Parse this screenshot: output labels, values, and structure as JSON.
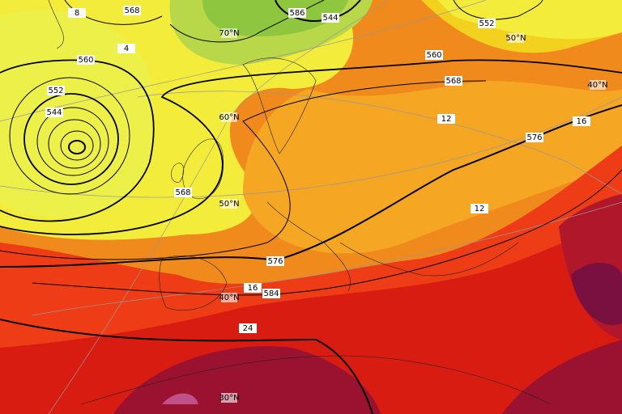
{
  "contour_labels": [
    "8",
    "568",
    "586",
    "544",
    "552",
    "4",
    "560",
    "560",
    "568",
    "552",
    "544",
    "12",
    "576",
    "16",
    "568",
    "12",
    "576",
    "16",
    "584",
    "24"
  ],
  "latitude_labels": [
    "70°N",
    "50°N",
    "40°N",
    "60°N",
    "50°N",
    "40°N",
    "30°N"
  ]
}
